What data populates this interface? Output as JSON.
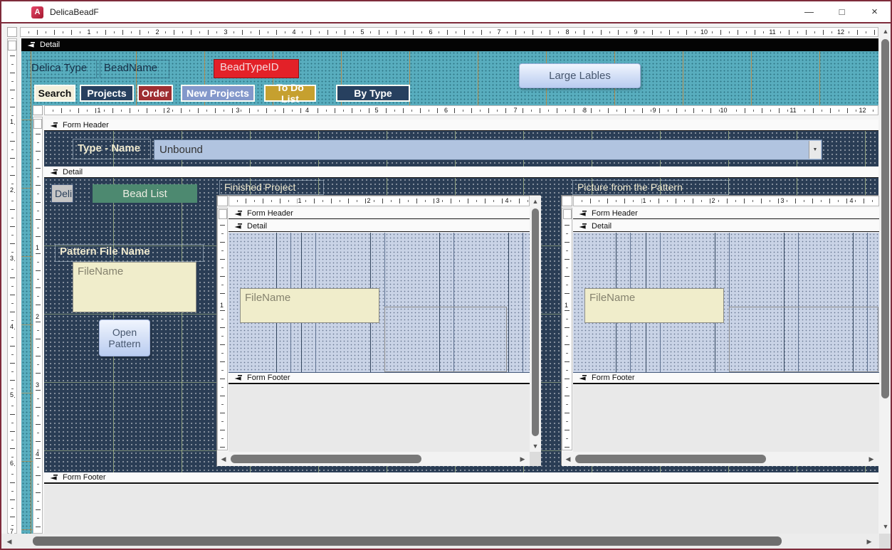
{
  "window": {
    "title": "DelicaBeadF"
  },
  "icons": {
    "access": "A",
    "minimize": "—",
    "maximize": "□",
    "close": "×",
    "dropdown": "▼",
    "scroll_up": "▲",
    "scroll_down": "▼",
    "scroll_left": "◀",
    "scroll_right": "▶"
  },
  "colors": {
    "window_border": "#7E2B3B",
    "teal_background": "#58ADBE",
    "navy_background": "#2A3D55",
    "periwinkle_background": "#C9D3E6",
    "red_label_bg": "#E32128",
    "green_button_bg": "#4D8970",
    "cream_textbox_bg": "#F0EDCB",
    "combo_bg": "#B1C4E0",
    "footer_gray": "#E9E9E9",
    "nav_buttons": [
      {
        "bg": "#F4F0DC",
        "fg": "#111111"
      },
      {
        "bg": "#27405F",
        "fg": "#FFFFFF"
      },
      {
        "bg": "#9E2D31",
        "fg": "#FFFFFF"
      },
      {
        "bg": "#8398CB",
        "fg": "#FFFFFF"
      },
      {
        "bg": "#C6A02F",
        "fg": "#FFFFFF"
      },
      {
        "bg": "#27405F",
        "fg": "#FFFFFF"
      }
    ]
  },
  "outer_form": {
    "detail_bar": "Detail",
    "delica_type_label": "Delica Type",
    "bead_name_label": "BeadName",
    "bead_type_id_label": "BeadTypeID",
    "large_labels_button": "Large Lables",
    "nav_buttons": [
      {
        "label": "Search"
      },
      {
        "label": "Projects"
      },
      {
        "label": "Order"
      },
      {
        "label": "New Projects"
      },
      {
        "label": "To Do List"
      },
      {
        "label": "By Type"
      }
    ]
  },
  "main_form": {
    "header_bar": "Form Header",
    "detail_bar": "Detail",
    "footer_bar": "Form Footer",
    "type_name_label": "Type - Name",
    "combo_value": "Unbound",
    "deli_label": "Deli",
    "bead_list_button": "Bead List",
    "pattern_file_name_label": "Pattern File Name",
    "file_name_textbox": "FileName",
    "open_pattern_button": "Open Pattern"
  },
  "finished_project_subform": {
    "title_label": "Finished Project",
    "header_bar": "Form Header",
    "detail_bar": "Detail",
    "footer_bar": "Form Footer",
    "file_name_textbox": "FileName"
  },
  "picture_subform": {
    "title_label": "Picture from the Pattern",
    "header_bar": "Form Header",
    "detail_bar": "Detail",
    "footer_bar": "Form Footer",
    "file_name_textbox": "FileName"
  },
  "rulers": {
    "outer_h": {
      "orient": "h",
      "first": 96,
      "spacing": 96,
      "numbers": [
        1,
        2,
        3,
        4,
        5,
        6,
        7,
        8,
        9,
        10,
        11,
        12
      ]
    },
    "outer_v": {
      "orient": "v",
      "first": 116,
      "spacing": 96,
      "numbers": [
        1,
        2,
        3,
        4,
        5,
        6,
        7
      ]
    },
    "inner_h": {
      "orient": "h",
      "first": 76,
      "spacing": 97.5,
      "numbers": [
        1,
        2,
        3,
        4,
        5,
        6,
        7,
        8,
        9,
        10,
        11,
        12
      ]
    },
    "inner_v": {
      "orient": "v",
      "first": 183,
      "spacing": 96.5,
      "numbers": [
        1,
        2,
        3,
        4
      ]
    },
    "fp_h": {
      "orient": "h",
      "first": 99,
      "spacing": 97,
      "numbers": [
        1,
        2,
        3,
        4
      ]
    },
    "fp_v": {
      "orient": "v",
      "first": 136,
      "spacing": 97,
      "numbers": [
        1
      ]
    },
    "pp_h": {
      "orient": "h",
      "first": 99,
      "spacing": 97,
      "numbers": [
        1,
        2,
        3,
        4
      ]
    },
    "pp_v": {
      "orient": "v",
      "first": 136,
      "spacing": 97,
      "numbers": [
        1
      ]
    }
  }
}
